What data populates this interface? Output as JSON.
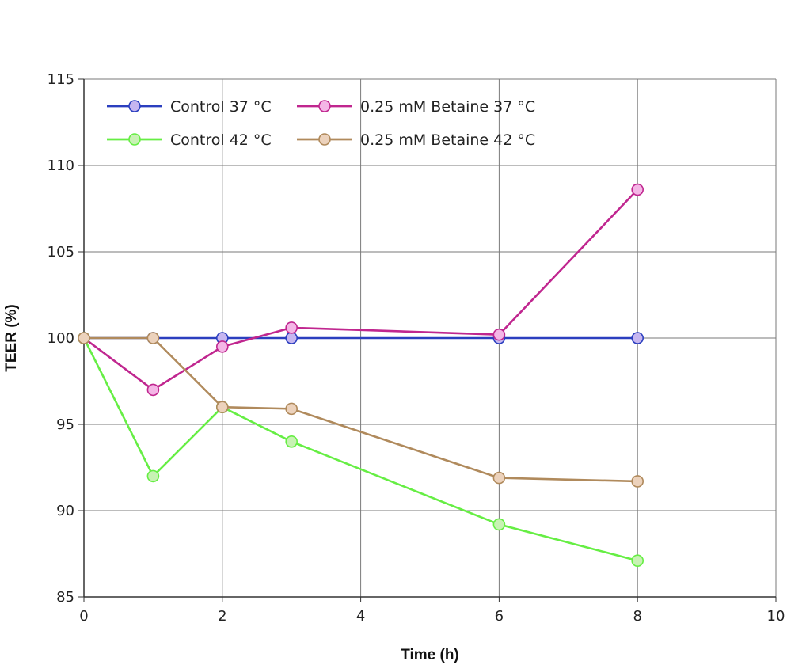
{
  "chart_data": {
    "type": "line",
    "title": "",
    "xlabel": "Time (h)",
    "ylabel": "TEER (%)",
    "xlim": [
      0,
      10
    ],
    "ylim": [
      85,
      115
    ],
    "xticks": [
      0,
      2,
      4,
      6,
      8,
      10
    ],
    "yticks": [
      85,
      90,
      95,
      100,
      105,
      110,
      115
    ],
    "xtick_labels": [
      "0",
      "2",
      "4",
      "6",
      "8",
      "10"
    ],
    "ytick_labels": [
      "85",
      "90",
      "95",
      "100",
      "105",
      "110",
      "115"
    ],
    "grid": true,
    "legend_position": "top-left",
    "series": [
      {
        "name": "Control 37 °C",
        "color": "#2b3fbf",
        "marker_fill": "#c6b6f0",
        "x": [
          0,
          1,
          2,
          3,
          6,
          8
        ],
        "y": [
          100,
          100,
          100,
          100,
          100,
          100
        ]
      },
      {
        "name": "0.25 mM Betaine 37 °C",
        "color": "#c0268f",
        "marker_fill": "#f4b6e6",
        "x": [
          0,
          1,
          2,
          3,
          6,
          8
        ],
        "y": [
          100,
          97,
          99.5,
          100.6,
          100.2,
          108.6
        ]
      },
      {
        "name": "Control 42 °C",
        "color": "#66ee44",
        "marker_fill": "#c8f2b4",
        "x": [
          0,
          1,
          2,
          3,
          6,
          8
        ],
        "y": [
          100,
          92,
          96,
          94,
          89.2,
          87.1
        ]
      },
      {
        "name": "0.25 mM Betaine 42 °C",
        "color": "#b08a5c",
        "marker_fill": "#ecd2bc",
        "x": [
          0,
          1,
          2,
          3,
          6,
          8
        ],
        "y": [
          100,
          100,
          96,
          95.9,
          91.9,
          91.7
        ]
      }
    ]
  }
}
